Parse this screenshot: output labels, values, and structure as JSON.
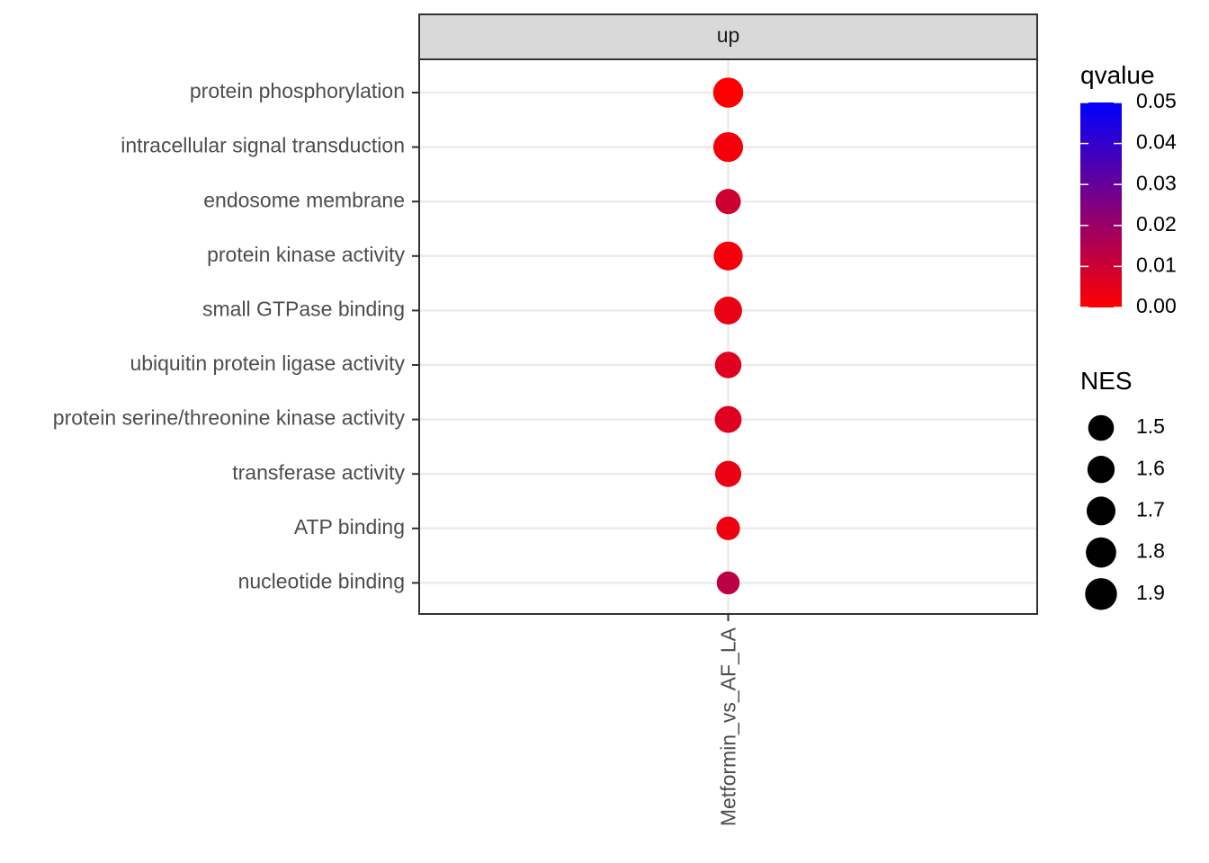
{
  "chart_data": {
    "type": "scatter",
    "facet": "up",
    "x_categories": [
      "Metformin_vs_AF_LA"
    ],
    "y_categories": [
      "protein phosphorylation",
      "intracellular signal transduction",
      "endosome membrane",
      "protein kinase activity",
      "small GTPase binding",
      "ubiquitin protein ligase activity",
      "protein serine/threonine kinase activity",
      "transferase activity",
      "ATP binding",
      "nucleotide binding"
    ],
    "points": [
      {
        "x": "Metformin_vs_AF_LA",
        "y": "protein phosphorylation",
        "qvalue": 0.0,
        "NES": 1.92
      },
      {
        "x": "Metformin_vs_AF_LA",
        "y": "intracellular signal transduction",
        "qvalue": 0.002,
        "NES": 1.9
      },
      {
        "x": "Metformin_vs_AF_LA",
        "y": "endosome membrane",
        "qvalue": 0.01,
        "NES": 1.62
      },
      {
        "x": "Metformin_vs_AF_LA",
        "y": "protein kinase activity",
        "qvalue": 0.002,
        "NES": 1.85
      },
      {
        "x": "Metformin_vs_AF_LA",
        "y": "small GTPase binding",
        "qvalue": 0.004,
        "NES": 1.78
      },
      {
        "x": "Metformin_vs_AF_LA",
        "y": "ubiquitin protein ligase activity",
        "qvalue": 0.006,
        "NES": 1.7
      },
      {
        "x": "Metformin_vs_AF_LA",
        "y": "protein serine/threonine kinase activity",
        "qvalue": 0.006,
        "NES": 1.72
      },
      {
        "x": "Metformin_vs_AF_LA",
        "y": "transferase activity",
        "qvalue": 0.004,
        "NES": 1.68
      },
      {
        "x": "Metformin_vs_AF_LA",
        "y": "ATP binding",
        "qvalue": 0.003,
        "NES": 1.52
      },
      {
        "x": "Metformin_vs_AF_LA",
        "y": "nucleotide binding",
        "qvalue": 0.013,
        "NES": 1.48
      }
    ],
    "color_legend": {
      "title": "qvalue",
      "ticks": [
        "0.05",
        "0.04",
        "0.03",
        "0.02",
        "0.01",
        "0.00"
      ],
      "range": [
        0.0,
        0.05
      ],
      "low_color": "#ff0000",
      "high_color": "#0000ff"
    },
    "size_legend": {
      "title": "NES",
      "labels": [
        "1.5",
        "1.6",
        "1.7",
        "1.8",
        "1.9"
      ],
      "color": "#000000"
    },
    "grid": true
  }
}
